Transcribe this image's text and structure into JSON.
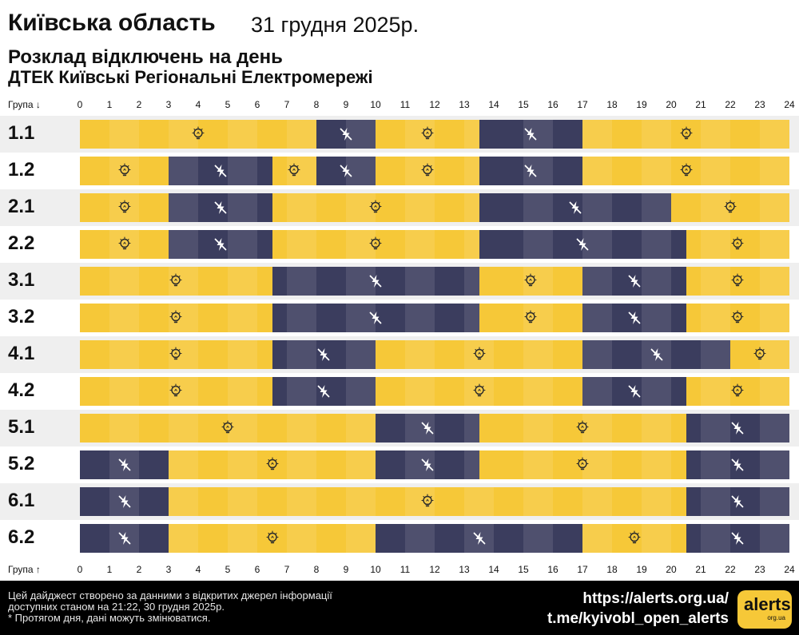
{
  "header": {
    "region": "Київська область",
    "date": "31 грудня 2025р.",
    "subtitle": "Розклад відключень на день",
    "subtitle2": "ДТЕК Київські Регіональні Електромережі"
  },
  "axis": {
    "top_label": "Група ↓",
    "bottom_label": "Група ↑",
    "ticks": [
      "0",
      "1",
      "2",
      "3",
      "4",
      "5",
      "6",
      "7",
      "8",
      "9",
      "10",
      "11",
      "12",
      "13",
      "14",
      "15",
      "16",
      "17",
      "18",
      "19",
      "20",
      "21",
      "22",
      "23",
      "24"
    ]
  },
  "colors": {
    "power_on": "#f6c838",
    "power_off": "#3b3d5e",
    "off_icon": "no-power-icon",
    "on_icon": "lightbulb-icon"
  },
  "groups": [
    {
      "name": "1.1",
      "segments": [
        {
          "s": 0,
          "e": 8,
          "t": "on"
        },
        {
          "s": 8,
          "e": 10,
          "t": "off"
        },
        {
          "s": 10,
          "e": 13.5,
          "t": "on"
        },
        {
          "s": 13.5,
          "e": 17,
          "t": "off"
        },
        {
          "s": 17,
          "e": 24,
          "t": "on"
        }
      ]
    },
    {
      "name": "1.2",
      "segments": [
        {
          "s": 0,
          "e": 3,
          "t": "on"
        },
        {
          "s": 3,
          "e": 6.5,
          "t": "off"
        },
        {
          "s": 6.5,
          "e": 8,
          "t": "on"
        },
        {
          "s": 8,
          "e": 10,
          "t": "off"
        },
        {
          "s": 10,
          "e": 13.5,
          "t": "on"
        },
        {
          "s": 13.5,
          "e": 17,
          "t": "off"
        },
        {
          "s": 17,
          "e": 24,
          "t": "on"
        }
      ]
    },
    {
      "name": "2.1",
      "segments": [
        {
          "s": 0,
          "e": 3,
          "t": "on"
        },
        {
          "s": 3,
          "e": 6.5,
          "t": "off"
        },
        {
          "s": 6.5,
          "e": 13.5,
          "t": "on"
        },
        {
          "s": 13.5,
          "e": 20,
          "t": "off"
        },
        {
          "s": 20,
          "e": 24,
          "t": "on"
        }
      ]
    },
    {
      "name": "2.2",
      "segments": [
        {
          "s": 0,
          "e": 3,
          "t": "on"
        },
        {
          "s": 3,
          "e": 6.5,
          "t": "off"
        },
        {
          "s": 6.5,
          "e": 13.5,
          "t": "on"
        },
        {
          "s": 13.5,
          "e": 20.5,
          "t": "off"
        },
        {
          "s": 20.5,
          "e": 24,
          "t": "on"
        }
      ]
    },
    {
      "name": "3.1",
      "segments": [
        {
          "s": 0,
          "e": 6.5,
          "t": "on"
        },
        {
          "s": 6.5,
          "e": 13.5,
          "t": "off"
        },
        {
          "s": 13.5,
          "e": 17,
          "t": "on"
        },
        {
          "s": 17,
          "e": 20.5,
          "t": "off"
        },
        {
          "s": 20.5,
          "e": 24,
          "t": "on"
        }
      ]
    },
    {
      "name": "3.2",
      "segments": [
        {
          "s": 0,
          "e": 6.5,
          "t": "on"
        },
        {
          "s": 6.5,
          "e": 13.5,
          "t": "off"
        },
        {
          "s": 13.5,
          "e": 17,
          "t": "on"
        },
        {
          "s": 17,
          "e": 20.5,
          "t": "off"
        },
        {
          "s": 20.5,
          "e": 24,
          "t": "on"
        }
      ]
    },
    {
      "name": "4.1",
      "segments": [
        {
          "s": 0,
          "e": 6.5,
          "t": "on"
        },
        {
          "s": 6.5,
          "e": 10,
          "t": "off"
        },
        {
          "s": 10,
          "e": 17,
          "t": "on"
        },
        {
          "s": 17,
          "e": 22,
          "t": "off"
        },
        {
          "s": 22,
          "e": 24,
          "t": "on"
        }
      ]
    },
    {
      "name": "4.2",
      "segments": [
        {
          "s": 0,
          "e": 6.5,
          "t": "on"
        },
        {
          "s": 6.5,
          "e": 10,
          "t": "off"
        },
        {
          "s": 10,
          "e": 17,
          "t": "on"
        },
        {
          "s": 17,
          "e": 20.5,
          "t": "off"
        },
        {
          "s": 20.5,
          "e": 24,
          "t": "on"
        }
      ]
    },
    {
      "name": "5.1",
      "segments": [
        {
          "s": 0,
          "e": 10,
          "t": "on"
        },
        {
          "s": 10,
          "e": 13.5,
          "t": "off"
        },
        {
          "s": 13.5,
          "e": 20.5,
          "t": "on"
        },
        {
          "s": 20.5,
          "e": 24,
          "t": "off"
        }
      ]
    },
    {
      "name": "5.2",
      "segments": [
        {
          "s": 0,
          "e": 3,
          "t": "off"
        },
        {
          "s": 3,
          "e": 10,
          "t": "on"
        },
        {
          "s": 10,
          "e": 13.5,
          "t": "off"
        },
        {
          "s": 13.5,
          "e": 20.5,
          "t": "on"
        },
        {
          "s": 20.5,
          "e": 24,
          "t": "off"
        }
      ]
    },
    {
      "name": "6.1",
      "segments": [
        {
          "s": 0,
          "e": 3,
          "t": "off"
        },
        {
          "s": 3,
          "e": 20.5,
          "t": "on"
        },
        {
          "s": 20.5,
          "e": 24,
          "t": "off"
        }
      ]
    },
    {
      "name": "6.2",
      "segments": [
        {
          "s": 0,
          "e": 3,
          "t": "off"
        },
        {
          "s": 3,
          "e": 10,
          "t": "on"
        },
        {
          "s": 10,
          "e": 17,
          "t": "off"
        },
        {
          "s": 17,
          "e": 20.5,
          "t": "on"
        },
        {
          "s": 20.5,
          "e": 24,
          "t": "off"
        }
      ]
    }
  ],
  "footer": {
    "note_line1": "Цей дайджест створено за данними з відкритих джерел інформації",
    "note_line2": "доступних станом на 21:22, 30 грудня 2025р.",
    "note_line3": "* Протягом дня, дані можуть змінюватися.",
    "link1": "https://alerts.org.ua/",
    "link2": "t.me/kyivobl_open_alerts",
    "logo_main": "alerts",
    "logo_sub": "org.ua"
  }
}
